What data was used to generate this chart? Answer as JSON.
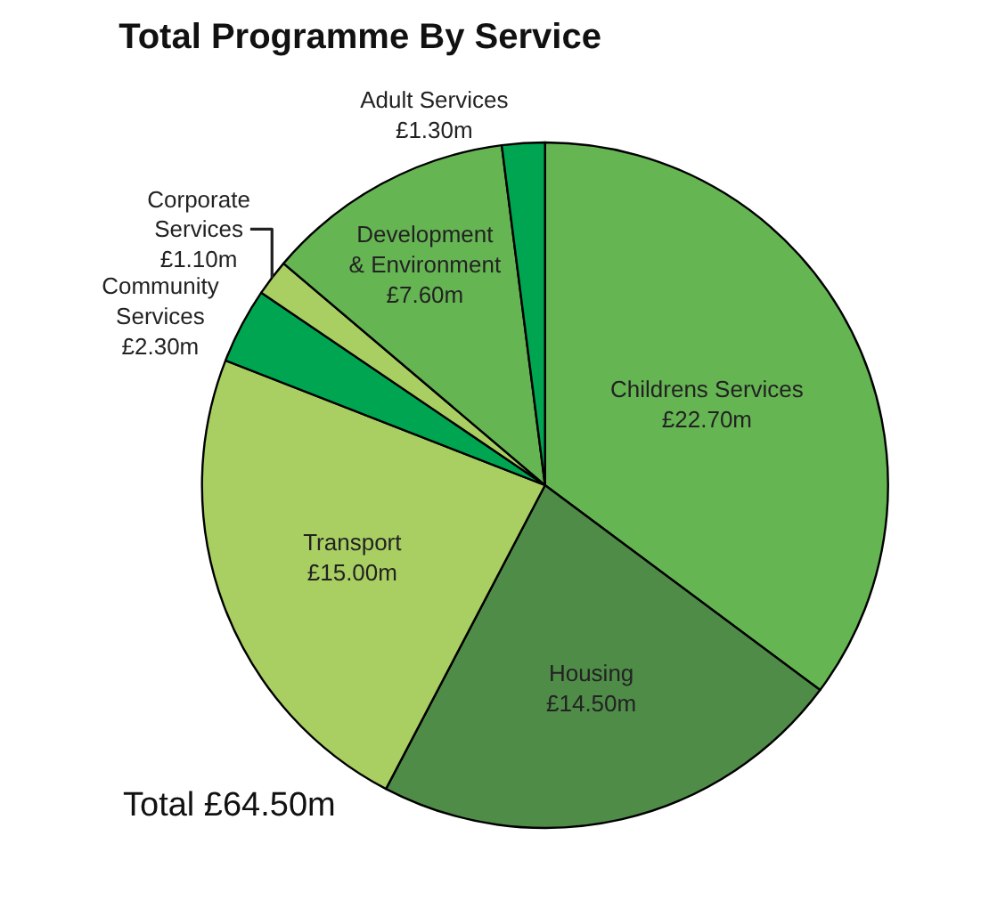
{
  "chart_data": {
    "type": "pie",
    "title": "Total Programme By Service",
    "categories": [
      "Childrens Services",
      "Housing",
      "Transport",
      "Community Services",
      "Corporate Services",
      "Development & Environment",
      "Adult Services"
    ],
    "values": [
      22.7,
      14.5,
      15.0,
      2.3,
      1.1,
      7.6,
      1.3
    ],
    "value_labels": [
      "£22.70m",
      "£14.50m",
      "£15.00m",
      "£2.30m",
      "£1.10m",
      "£7.60m",
      "£1.30m"
    ],
    "colors": [
      "#66b553",
      "#4f8c48",
      "#a9cf62",
      "#00a551",
      "#a9cf62",
      "#66b553",
      "#00a551"
    ],
    "annotations": [
      "Total £64.50m"
    ],
    "legend": false
  }
}
